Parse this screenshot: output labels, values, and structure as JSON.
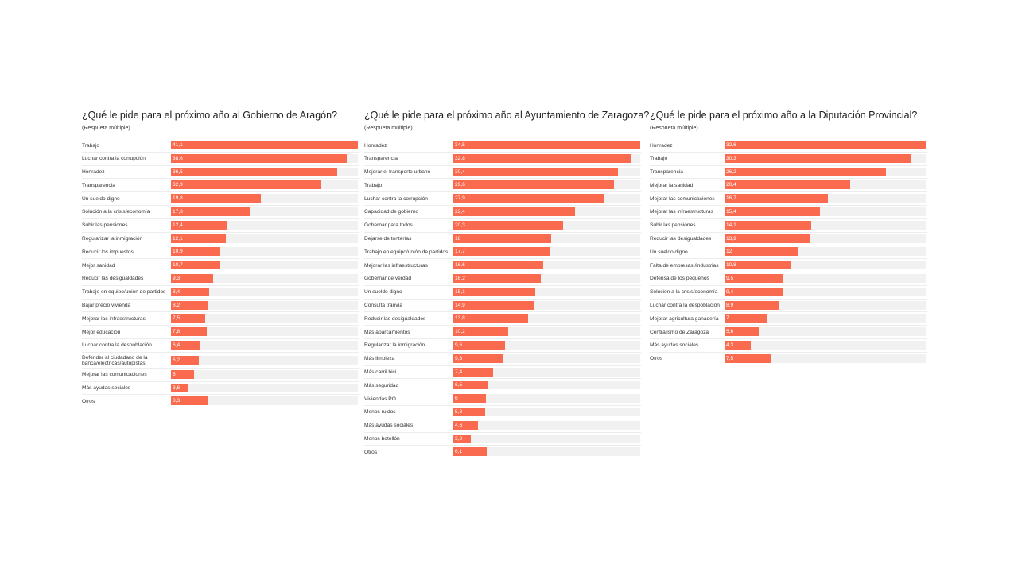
{
  "chart_data": [
    {
      "type": "bar",
      "orientation": "horizontal",
      "title": "¿Qué le pide para el próximo año al Gobierno de Aragón?",
      "subtitle": "(Respueta múltiple)",
      "xlabel": "",
      "ylabel": "",
      "xlim": [
        0,
        41.1
      ],
      "color": "#fa6a4f",
      "track_color": "#f1f1f1",
      "categories": [
        "Trabajo",
        "Luchar contra la corrupción",
        "Honradez",
        "Transparencia",
        "Un sueldo digno",
        "Solución a la crisis/economía",
        "Subir las pensiones",
        "Regularizar la inmigración",
        "Reducir los impuestos",
        "Mejor sanidad",
        "Reducir las desigualdades",
        "Trabajo en equipo/unión de partidos",
        "Bajar precio vivienda",
        "Mejorar las infraestructuras",
        "Mejor educación",
        "Luchar contra la despoblación",
        "Defender al ciudadano de la banca/eléctricas/autopistas",
        "Mejorar las comunicaciones",
        "Más ayudas sociales",
        "Otros"
      ],
      "values": [
        41.1,
        38.6,
        36.5,
        32.9,
        19.8,
        17.3,
        12.4,
        12.1,
        10.9,
        10.7,
        9.3,
        8.4,
        8.2,
        7.5,
        7.8,
        6.4,
        6.2,
        5,
        3.6,
        8.3
      ],
      "value_labels": [
        "41,1",
        "38,6",
        "36,5",
        "32,9",
        "19,8",
        "17,3",
        "12,4",
        "12,1",
        "10,9",
        "10,7",
        "9,3",
        "8,4",
        "8,2",
        "7,5",
        "7,8",
        "6,4",
        "6,2",
        "5",
        "3,6",
        "8,3"
      ]
    },
    {
      "type": "bar",
      "orientation": "horizontal",
      "title": "¿Qué le pide para el próximo año al Ayuntamiento de Zaragoza?",
      "subtitle": "(Respueta múltiple)",
      "xlabel": "",
      "ylabel": "",
      "xlim": [
        0,
        34.5
      ],
      "color": "#fa6a4f",
      "track_color": "#f1f1f1",
      "categories": [
        "Honradez",
        "Transparencia",
        "Mejorar el transporte urbano",
        "Trabajo",
        "Luchar contra la corrupción",
        "Capacidad de gobierno",
        "Gobernar para todos",
        "Dejarse de tonterías",
        "Trabajo en equipo/unión de partidos",
        "Mejorar las infraestructuras",
        "Gobernar de verdad",
        "Un sueldo digno",
        "Consulta tranvía",
        "Reducir las desigualdades",
        "Más aparcamientos",
        "Regularizar la inmigración",
        "Más limpieza",
        "Más carril bici",
        "Más seguridad",
        "Viviendas PO",
        "Menos ruidos",
        "Más ayudas sociales",
        "Menos botellón",
        "Otros"
      ],
      "values": [
        34.5,
        32.8,
        30.4,
        29.6,
        27.9,
        22.4,
        20.3,
        18,
        17.7,
        16.6,
        16.2,
        15.1,
        14.9,
        13.8,
        10.2,
        9.6,
        9.3,
        7.4,
        6.5,
        6,
        5.8,
        4.6,
        3.2,
        6.1
      ],
      "value_labels": [
        "34,5",
        "32,8",
        "30,4",
        "29,6",
        "27,9",
        "22,4",
        "20,3",
        "18",
        "17,7",
        "16,6",
        "16,2",
        "15,1",
        "14,9",
        "13,8",
        "10,2",
        "9,6",
        "9,3",
        "7,4",
        "6,5",
        "6",
        "5,8",
        "4,6",
        "3,2",
        "6,1"
      ]
    },
    {
      "type": "bar",
      "orientation": "horizontal",
      "title": "¿Qué le pide para el próximo año a la Diputación Provincial?",
      "subtitle": "(Respueta múltiple)",
      "xlabel": "",
      "ylabel": "",
      "xlim": [
        0,
        32.6
      ],
      "color": "#fa6a4f",
      "track_color": "#f1f1f1",
      "categories": [
        "Honradez",
        "Trabajo",
        "Transparencia",
        "Mejorar la sanidad",
        "Mejorar las comunicaciones",
        "Mejorar las infraestructuras",
        "Subir las pensiones",
        "Reducir las desigualdades",
        "Un sueldo digno",
        "Falta de empresas /industrias",
        "Defensa de los pequeños",
        "Solución a la crisis/economía",
        "Luchar contra la despoblación",
        "Mejorar agricultura ganadería",
        "Centralismo de Zaragoza",
        "Más ayudas sociales",
        "Otros"
      ],
      "values": [
        32.6,
        30.3,
        26.2,
        20.4,
        16.7,
        15.4,
        14.1,
        13.9,
        12,
        10.8,
        9.5,
        9.4,
        8.9,
        7,
        5.6,
        4.3,
        7.5
      ],
      "value_labels": [
        "32,6",
        "30,3",
        "26,2",
        "20,4",
        "16,7",
        "15,4",
        "14,1",
        "13,9",
        "12",
        "10,8",
        "9,5",
        "9,4",
        "8,9",
        "7",
        "5,6",
        "4,3",
        "7,5"
      ]
    }
  ]
}
